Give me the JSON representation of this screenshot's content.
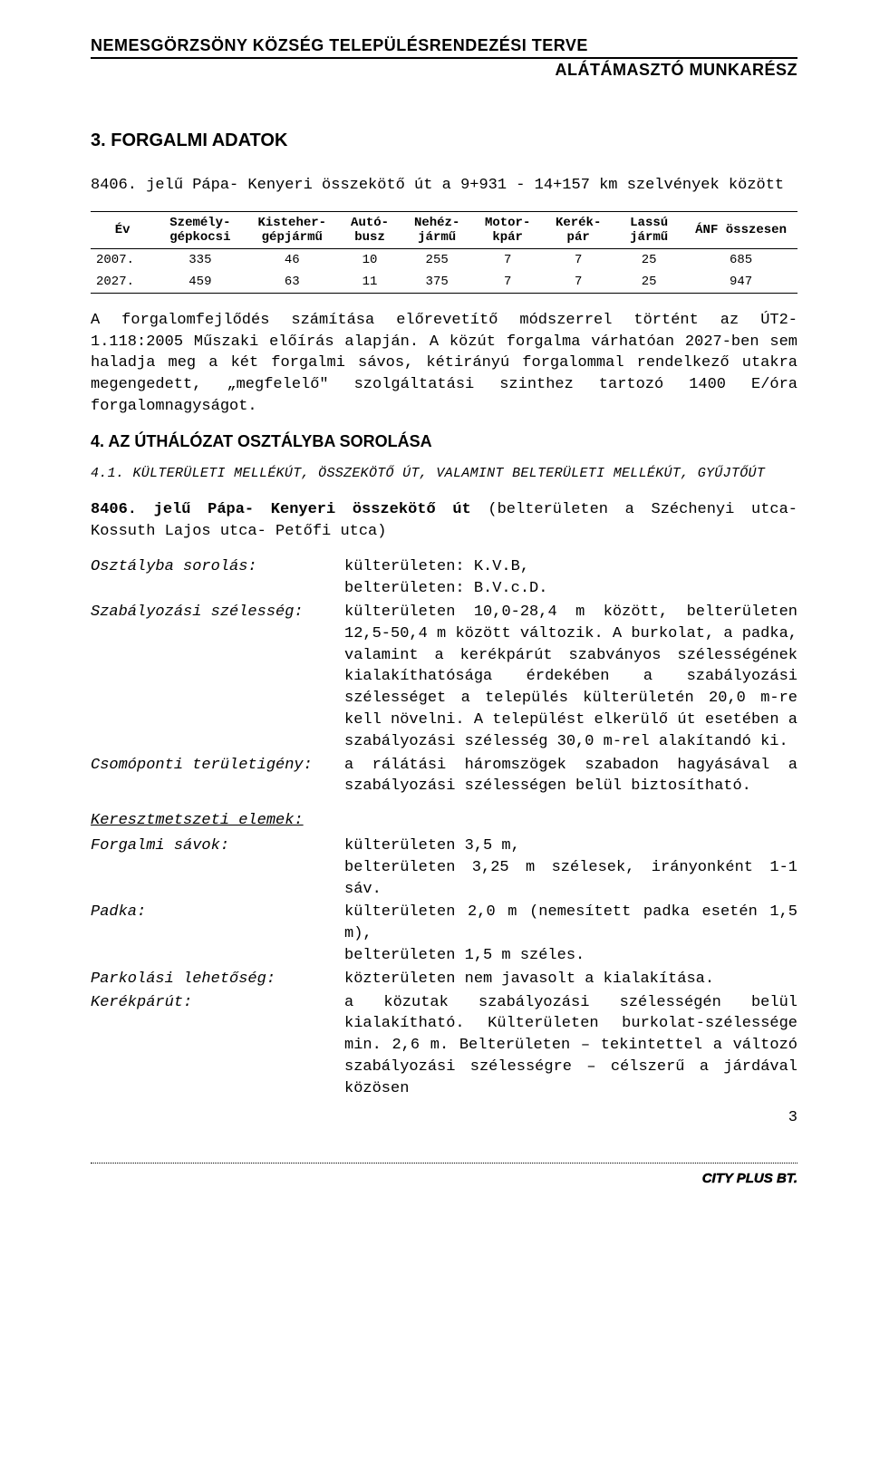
{
  "header": {
    "line1": "NEMESGÖRZSÖNY KÖZSÉG TELEPÜLÉSRENDEZÉSI TERVE",
    "line2": "ALÁTÁMASZTÓ MUNKARÉSZ"
  },
  "section3": {
    "title": "3. FORGALMI ADATOK",
    "intro": "8406. jelű Pápa- Kenyeri összekötő út a 9+931 - 14+157 km szelvények között"
  },
  "table": {
    "columns": [
      "Év",
      "Személy-gépkocsi",
      "Kisteher-gépjármű",
      "Autó-busz",
      "Nehéz-jármű",
      "Motor-kpár",
      "Kerék-pár",
      "Lassú jármű",
      "ÁNF összesen"
    ],
    "rows": [
      [
        "2007.",
        "335",
        "46",
        "10",
        "255",
        "7",
        "7",
        "25",
        "685"
      ],
      [
        "2027.",
        "459",
        "63",
        "11",
        "375",
        "7",
        "7",
        "25",
        "947"
      ]
    ],
    "col_widths_pct": [
      9,
      13,
      13,
      9,
      10,
      10,
      10,
      10,
      16
    ]
  },
  "para_after_table": "A forgalomfejlődés számítása előrevetítő módszerrel történt az ÚT2-1.118:2005 Műszaki előírás alapján. A közút forgalma várhatóan 2027-ben sem haladja meg a két forgalmi sávos, kétirányú forgalommal rendelkező utakra megengedett, „megfelelő\" szolgáltatási szinthez tartozó 1400 E/óra forgalomnagyságot.",
  "section4": {
    "title": "4. AZ ÚTHÁLÓZAT OSZTÁLYBA SOROLÁSA",
    "sub41": "4.1. KÜLTERÜLETI MELLÉKÚT, ÖSSZEKÖTŐ ÚT, VALAMINT BELTERÜLETI MELLÉKÚT, GYŰJTŐÚT",
    "road_line_bold": "8406. jelű Pápa- Kenyeri összekötő út",
    "road_line_rest": " (belterületen a Széchenyi utca- Kossuth Lajos utca- Petőfi utca)"
  },
  "defs": {
    "osztalyba": {
      "label": "Osztályba sorolás:",
      "value": "külterületen: K.V.B,\nbelterületen: B.V.c.D."
    },
    "szabalyozasi": {
      "label": "Szabályozási szélesség:",
      "value": "külterületen 10,0-28,4 m között, belterületen 12,5-50,4 m között változik. A burkolat, a padka, valamint a kerékpárút szabványos szélességének kialakíthatósága érdekében a szabályozási szélességet a település külterületén 20,0 m-re kell növelni. A települést elkerülő út esetében a szabályozási szélesség  30,0 m-rel alakítandó ki."
    },
    "csomoponti": {
      "label": "Csomóponti területigény:",
      "value": "a rálátási háromszögek szabadon hagyásával a szabályozási szélességen belül biztosítható."
    },
    "group_title": "Keresztmetszeti elemek:",
    "forgalmi": {
      "label": "Forgalmi sávok:",
      "value": "külterületen 3,5 m,\nbelterületen 3,25 m szélesek, irányonként 1-1 sáv."
    },
    "padka": {
      "label": "Padka:",
      "value": "külterületen 2,0 m (nemesített padka esetén 1,5 m),\nbelterületen 1,5 m széles."
    },
    "parkolasi": {
      "label": "Parkolási lehetőség:",
      "value": "közterületen nem javasolt a kialakítása."
    },
    "kerekparut": {
      "label": "Kerékpárút:",
      "value": "a közutak szabályozási szélességén belül kialakítható. Külterületen burkolat-szélessége min. 2,6 m. Belterületen – tekintettel a változó szabályozási szélességre – célszerű a járdával közösen"
    }
  },
  "footer": {
    "page_number": "3",
    "brand": "CITY PLUS BT."
  }
}
